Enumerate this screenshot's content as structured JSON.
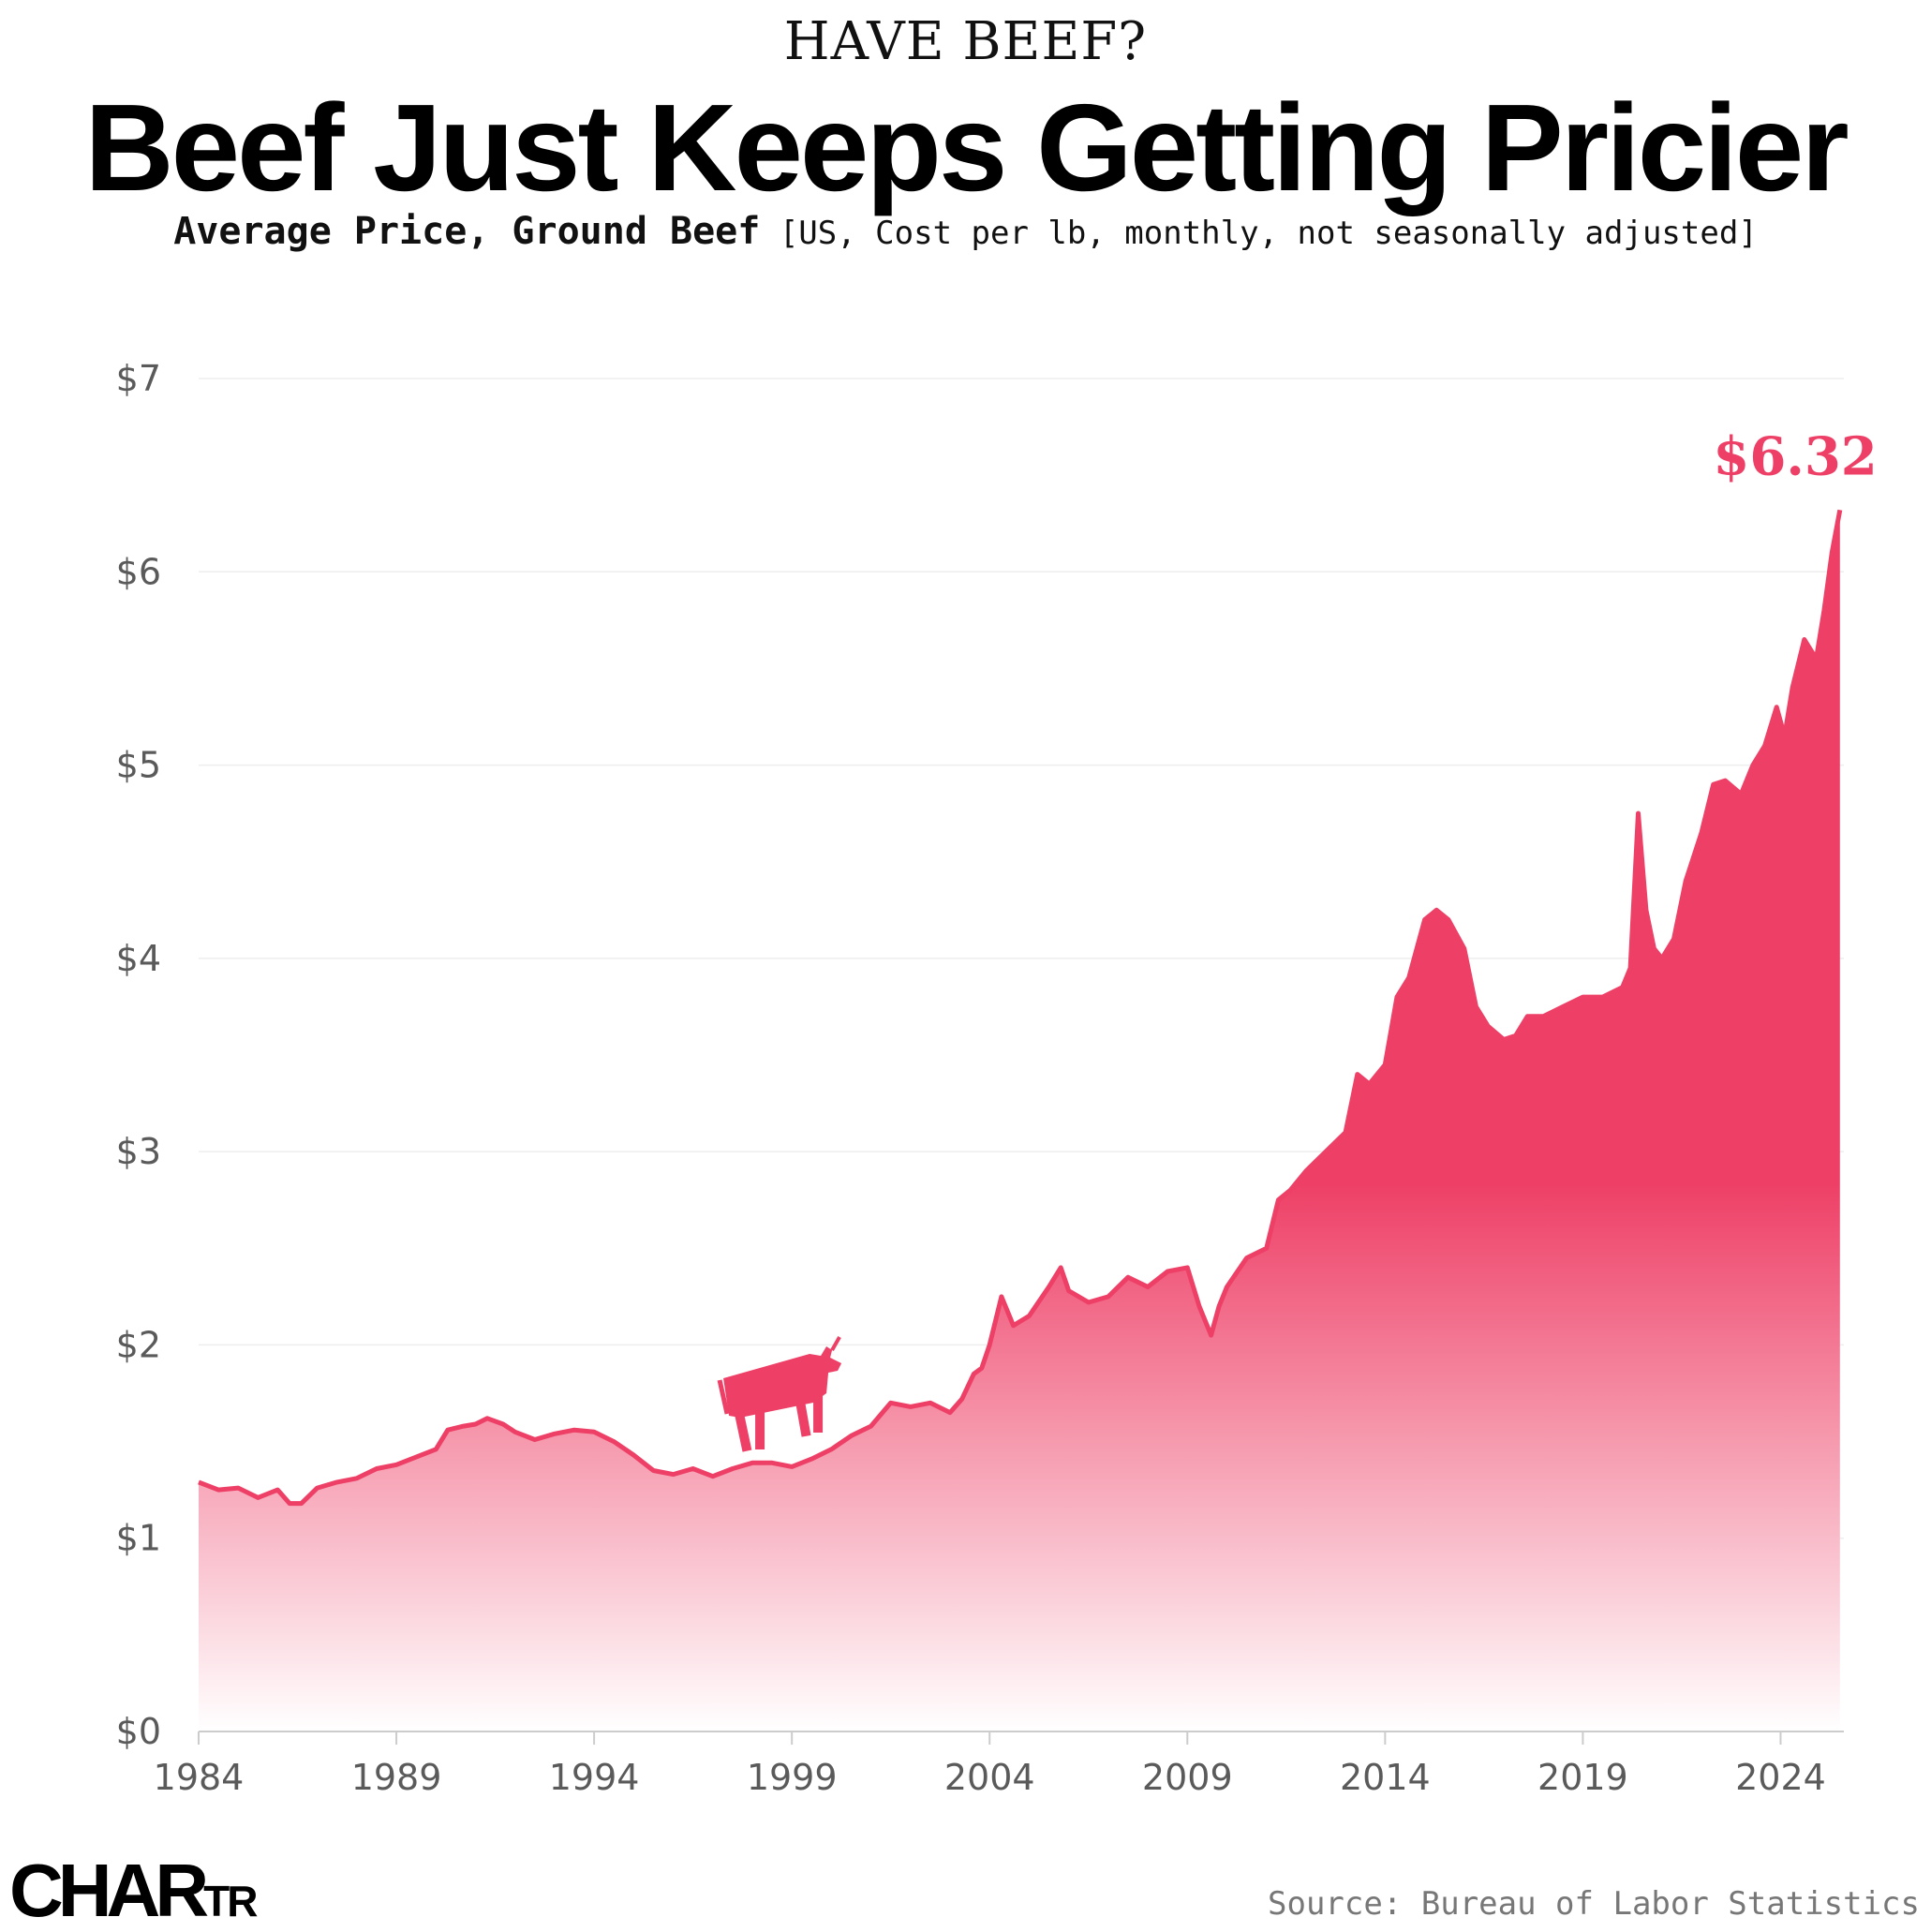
{
  "header": {
    "kicker": "HAVE BEEF?",
    "title": "Beef Just Keeps Getting Pricier",
    "subtitle_bold": "Average Price, Ground Beef",
    "subtitle_rest": "[US, Cost per lb, monthly, not seasonally adjusted]"
  },
  "footer": {
    "logo_main": "CHAR",
    "logo_small": "TR",
    "source": "Source: Bureau of Labor Statistics"
  },
  "colors": {
    "accent": "#ee3f66",
    "fill_top": "#ee3f66",
    "fill_bottom": "#ffffff",
    "grid": "#eeeeee",
    "axis": "#cccccc"
  },
  "icons": {
    "mascot": "cow-icon"
  },
  "chart_data": {
    "type": "area",
    "xlabel": "",
    "ylabel": "",
    "xlim": [
      1984,
      2025.6
    ],
    "ylim": [
      0,
      7
    ],
    "x_ticks": [
      1984,
      1989,
      1994,
      1999,
      2004,
      2009,
      2014,
      2019,
      2024
    ],
    "y_ticks": [
      0,
      1,
      2,
      3,
      4,
      5,
      6,
      7
    ],
    "y_tick_labels": [
      "$0",
      "$1",
      "$2",
      "$3",
      "$4",
      "$5",
      "$6",
      "$7"
    ],
    "grid": true,
    "series": [
      {
        "x": [
          1984.0,
          1984.5,
          1985.0,
          1985.5,
          1986.0,
          1986.3,
          1986.6,
          1987.0,
          1987.5,
          1988.0,
          1988.5,
          1989.0,
          1989.5,
          1990.0,
          1990.3,
          1990.7,
          1991.0,
          1991.3,
          1991.7,
          1992.0,
          1992.5,
          1993.0,
          1993.5,
          1994.0,
          1994.5,
          1995.0,
          1995.5,
          1996.0,
          1996.5,
          1997.0,
          1997.5,
          1998.0,
          1998.5,
          1999.0,
          1999.5,
          2000.0,
          2000.5,
          2001.0,
          2001.5,
          2002.0,
          2002.5,
          2003.0,
          2003.3,
          2003.6,
          2003.8,
          2004.0,
          2004.3,
          2004.6,
          2005.0,
          2005.5,
          2005.8,
          2006.0,
          2006.5,
          2007.0,
          2007.5,
          2008.0,
          2008.5,
          2009.0,
          2009.3,
          2009.6,
          2009.8,
          2010.0,
          2010.5,
          2011.0,
          2011.3,
          2011.6,
          2012.0,
          2012.5,
          2013.0,
          2013.3,
          2013.6,
          2014.0,
          2014.3,
          2014.6,
          2015.0,
          2015.3,
          2015.6,
          2016.0,
          2016.3,
          2016.6,
          2017.0,
          2017.3,
          2017.6,
          2018.0,
          2018.5,
          2019.0,
          2019.5,
          2020.0,
          2020.2,
          2020.4,
          2020.6,
          2020.8,
          2021.0,
          2021.3,
          2021.6,
          2022.0,
          2022.3,
          2022.6,
          2023.0,
          2023.3,
          2023.6,
          2023.9,
          2024.1,
          2024.3,
          2024.6,
          2024.9,
          2025.1,
          2025.3,
          2025.5
        ],
        "y": [
          1.29,
          1.25,
          1.26,
          1.21,
          1.25,
          1.18,
          1.18,
          1.26,
          1.29,
          1.31,
          1.36,
          1.38,
          1.42,
          1.46,
          1.56,
          1.58,
          1.59,
          1.62,
          1.59,
          1.55,
          1.51,
          1.54,
          1.56,
          1.55,
          1.5,
          1.43,
          1.35,
          1.33,
          1.36,
          1.32,
          1.36,
          1.39,
          1.39,
          1.37,
          1.41,
          1.46,
          1.53,
          1.58,
          1.7,
          1.68,
          1.7,
          1.65,
          1.72,
          1.85,
          1.88,
          2.0,
          2.25,
          2.1,
          2.15,
          2.3,
          2.4,
          2.28,
          2.22,
          2.25,
          2.35,
          2.3,
          2.38,
          2.4,
          2.2,
          2.05,
          2.2,
          2.3,
          2.45,
          2.5,
          2.75,
          2.8,
          2.9,
          3.0,
          3.1,
          3.4,
          3.35,
          3.45,
          3.8,
          3.9,
          4.2,
          4.25,
          4.2,
          4.05,
          3.75,
          3.65,
          3.58,
          3.6,
          3.7,
          3.7,
          3.75,
          3.8,
          3.8,
          3.85,
          3.95,
          4.75,
          4.25,
          4.05,
          4.0,
          4.1,
          4.4,
          4.65,
          4.9,
          4.92,
          4.85,
          5.0,
          5.1,
          5.3,
          5.15,
          5.4,
          5.65,
          5.55,
          5.8,
          6.1,
          6.32
        ]
      }
    ],
    "annotations": [
      {
        "x": 2025.5,
        "y": 6.32,
        "text": "$6.32"
      }
    ]
  }
}
